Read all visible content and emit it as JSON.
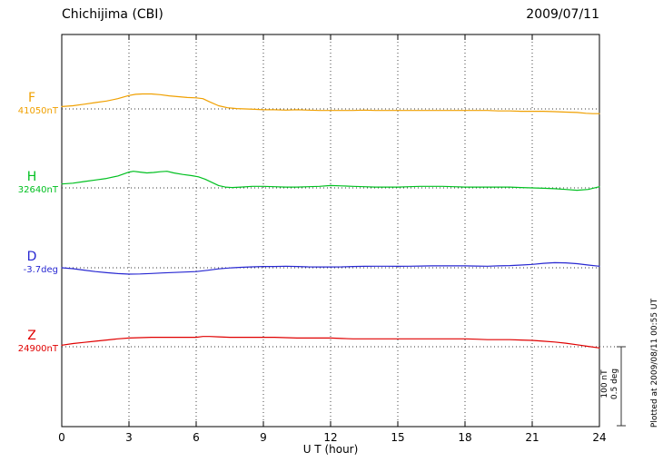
{
  "header": {
    "station": "Chichijima (CBI)",
    "date": "2009/07/11"
  },
  "side_note": "Plotted at 2009/08/11 00:55 UT",
  "scale_bar": {
    "line1": "100 nT",
    "line2": "0.5 deg"
  },
  "chart_data": {
    "type": "line",
    "title": "Chichijima (CBI) magnetogram 2009/07/11",
    "xlabel": "U T (hour)",
    "x_range": [
      0,
      24
    ],
    "x_ticks": [
      0,
      3,
      6,
      9,
      12,
      15,
      18,
      21,
      24
    ],
    "grid": "dotted vertical lines at 3-hour ticks; dotted horizontal baseline per component",
    "legend_position": "left baseline labels",
    "scale": {
      "nT_per_division": 100,
      "deg_per_division": 0.5
    },
    "series": [
      {
        "name": "F",
        "unit": "nT",
        "baseline_value": 41050,
        "baseline_label": "41050nT",
        "color": "#f0a000",
        "points": [
          [
            0,
            3
          ],
          [
            0.5,
            4
          ],
          [
            1,
            6
          ],
          [
            1.5,
            8
          ],
          [
            2,
            10
          ],
          [
            2.5,
            13
          ],
          [
            3,
            17
          ],
          [
            3.3,
            18.5
          ],
          [
            3.6,
            19
          ],
          [
            4,
            19
          ],
          [
            4.4,
            18
          ],
          [
            4.8,
            16.5
          ],
          [
            5.2,
            15.5
          ],
          [
            5.6,
            14.5
          ],
          [
            6,
            14
          ],
          [
            6.3,
            13
          ],
          [
            6.6,
            9
          ],
          [
            7,
            4
          ],
          [
            7.4,
            1.5
          ],
          [
            7.8,
            0.5
          ],
          [
            8.2,
            0
          ],
          [
            8.6,
            -0.5
          ],
          [
            9,
            -1
          ],
          [
            9.5,
            -1
          ],
          [
            10,
            -1.5
          ],
          [
            10.5,
            -1
          ],
          [
            11,
            -1.5
          ],
          [
            11.5,
            -2
          ],
          [
            12,
            -2
          ],
          [
            12.5,
            -2
          ],
          [
            13,
            -2
          ],
          [
            13.5,
            -1.5
          ],
          [
            14,
            -2
          ],
          [
            14.5,
            -2
          ],
          [
            15,
            -2
          ],
          [
            15.5,
            -2
          ],
          [
            16,
            -2
          ],
          [
            16.5,
            -2
          ],
          [
            17,
            -2
          ],
          [
            17.5,
            -2
          ],
          [
            18,
            -2
          ],
          [
            18.5,
            -2
          ],
          [
            19,
            -2
          ],
          [
            19.5,
            -2.5
          ],
          [
            20,
            -2.5
          ],
          [
            20.5,
            -3
          ],
          [
            21,
            -3
          ],
          [
            21.5,
            -3
          ],
          [
            22,
            -3.5
          ],
          [
            22.5,
            -4
          ],
          [
            23,
            -4.5
          ],
          [
            23.4,
            -5.5
          ],
          [
            23.7,
            -6
          ],
          [
            24,
            -6
          ]
        ]
      },
      {
        "name": "H",
        "unit": "nT",
        "baseline_value": 32640,
        "baseline_label": "32640nT",
        "color": "#00c020",
        "points": [
          [
            0,
            5
          ],
          [
            0.5,
            6
          ],
          [
            1,
            8
          ],
          [
            1.5,
            10
          ],
          [
            2,
            12
          ],
          [
            2.5,
            15
          ],
          [
            3,
            20
          ],
          [
            3.2,
            21
          ],
          [
            3.5,
            20
          ],
          [
            3.8,
            19
          ],
          [
            4.1,
            19.5
          ],
          [
            4.4,
            20.5
          ],
          [
            4.7,
            21
          ],
          [
            5,
            19
          ],
          [
            5.4,
            17
          ],
          [
            5.8,
            15.5
          ],
          [
            6.1,
            14
          ],
          [
            6.4,
            11
          ],
          [
            6.7,
            7
          ],
          [
            7,
            3
          ],
          [
            7.3,
            1
          ],
          [
            7.6,
            0.5
          ],
          [
            8,
            1
          ],
          [
            8.5,
            2
          ],
          [
            9,
            2
          ],
          [
            9.5,
            1.5
          ],
          [
            10,
            1
          ],
          [
            10.5,
            1
          ],
          [
            11,
            1.5
          ],
          [
            11.5,
            2
          ],
          [
            12,
            3
          ],
          [
            12.5,
            2.5
          ],
          [
            13,
            2
          ],
          [
            13.5,
            1.5
          ],
          [
            14,
            1
          ],
          [
            14.5,
            1
          ],
          [
            15,
            1
          ],
          [
            15.5,
            1.5
          ],
          [
            16,
            2
          ],
          [
            16.5,
            2
          ],
          [
            17,
            2
          ],
          [
            17.5,
            1.5
          ],
          [
            18,
            1
          ],
          [
            18.5,
            1
          ],
          [
            19,
            1
          ],
          [
            19.5,
            1
          ],
          [
            20,
            1
          ],
          [
            20.5,
            0.5
          ],
          [
            21,
            0
          ],
          [
            21.5,
            -0.5
          ],
          [
            22,
            -1
          ],
          [
            22.5,
            -2
          ],
          [
            23,
            -3
          ],
          [
            23.5,
            -2
          ],
          [
            24,
            1.5
          ]
        ]
      },
      {
        "name": "D",
        "unit": "deg",
        "baseline_value": -3.7,
        "baseline_label": "-3.7deg",
        "color": "#2828d2",
        "points": [
          [
            0,
            0
          ],
          [
            0.5,
            -0.006
          ],
          [
            1,
            -0.015
          ],
          [
            1.5,
            -0.024
          ],
          [
            2,
            -0.031
          ],
          [
            2.5,
            -0.037
          ],
          [
            3,
            -0.04
          ],
          [
            3.5,
            -0.039
          ],
          [
            4,
            -0.036
          ],
          [
            4.5,
            -0.033
          ],
          [
            5,
            -0.03
          ],
          [
            5.5,
            -0.027
          ],
          [
            6,
            -0.024
          ],
          [
            6.5,
            -0.016
          ],
          [
            7,
            -0.007
          ],
          [
            7.5,
            -0.001
          ],
          [
            8,
            0.003
          ],
          [
            8.5,
            0.006
          ],
          [
            9,
            0.008
          ],
          [
            9.5,
            0.008
          ],
          [
            10,
            0.01
          ],
          [
            10.5,
            0.008
          ],
          [
            11,
            0.006
          ],
          [
            11.5,
            0.005
          ],
          [
            12,
            0.005
          ],
          [
            12.5,
            0.006
          ],
          [
            13,
            0.008
          ],
          [
            13.5,
            0.009
          ],
          [
            14,
            0.01
          ],
          [
            14.5,
            0.01
          ],
          [
            15,
            0.009
          ],
          [
            15.5,
            0.01
          ],
          [
            16,
            0.011
          ],
          [
            16.5,
            0.012
          ],
          [
            17,
            0.012
          ],
          [
            17.5,
            0.012
          ],
          [
            18,
            0.012
          ],
          [
            18.5,
            0.011
          ],
          [
            19,
            0.01
          ],
          [
            19.5,
            0.012
          ],
          [
            20,
            0.014
          ],
          [
            20.5,
            0.017
          ],
          [
            21,
            0.021
          ],
          [
            21.5,
            0.028
          ],
          [
            22,
            0.032
          ],
          [
            22.5,
            0.031
          ],
          [
            23,
            0.026
          ],
          [
            23.5,
            0.017
          ],
          [
            24,
            0.01
          ]
        ]
      },
      {
        "name": "Z",
        "unit": "nT",
        "baseline_value": 24900,
        "baseline_label": "24900nT",
        "color": "#e00000",
        "points": [
          [
            0,
            2
          ],
          [
            0.5,
            4
          ],
          [
            1,
            5.5
          ],
          [
            1.5,
            7
          ],
          [
            2,
            8.5
          ],
          [
            2.5,
            10
          ],
          [
            3,
            11
          ],
          [
            3.5,
            11.5
          ],
          [
            4,
            12
          ],
          [
            4.5,
            12
          ],
          [
            5,
            12
          ],
          [
            5.5,
            12
          ],
          [
            6,
            12
          ],
          [
            6.3,
            13
          ],
          [
            6.6,
            13
          ],
          [
            7,
            12.5
          ],
          [
            7.5,
            12
          ],
          [
            8,
            12
          ],
          [
            8.5,
            12
          ],
          [
            9,
            12
          ],
          [
            9.5,
            12
          ],
          [
            10,
            11.5
          ],
          [
            10.5,
            11
          ],
          [
            11,
            11
          ],
          [
            11.5,
            11
          ],
          [
            12,
            11
          ],
          [
            12.5,
            10.5
          ],
          [
            13,
            10
          ],
          [
            13.5,
            10
          ],
          [
            14,
            10
          ],
          [
            14.5,
            10
          ],
          [
            15,
            10
          ],
          [
            15.5,
            10
          ],
          [
            16,
            10
          ],
          [
            16.5,
            10
          ],
          [
            17,
            10
          ],
          [
            17.5,
            10
          ],
          [
            18,
            10
          ],
          [
            18.5,
            9.5
          ],
          [
            19,
            9
          ],
          [
            19.5,
            9
          ],
          [
            20,
            9
          ],
          [
            20.5,
            8.5
          ],
          [
            21,
            8
          ],
          [
            21.5,
            7
          ],
          [
            22,
            6
          ],
          [
            22.5,
            4.5
          ],
          [
            23,
            2.5
          ],
          [
            23.5,
            0.5
          ],
          [
            24,
            -1.5
          ]
        ]
      }
    ]
  }
}
